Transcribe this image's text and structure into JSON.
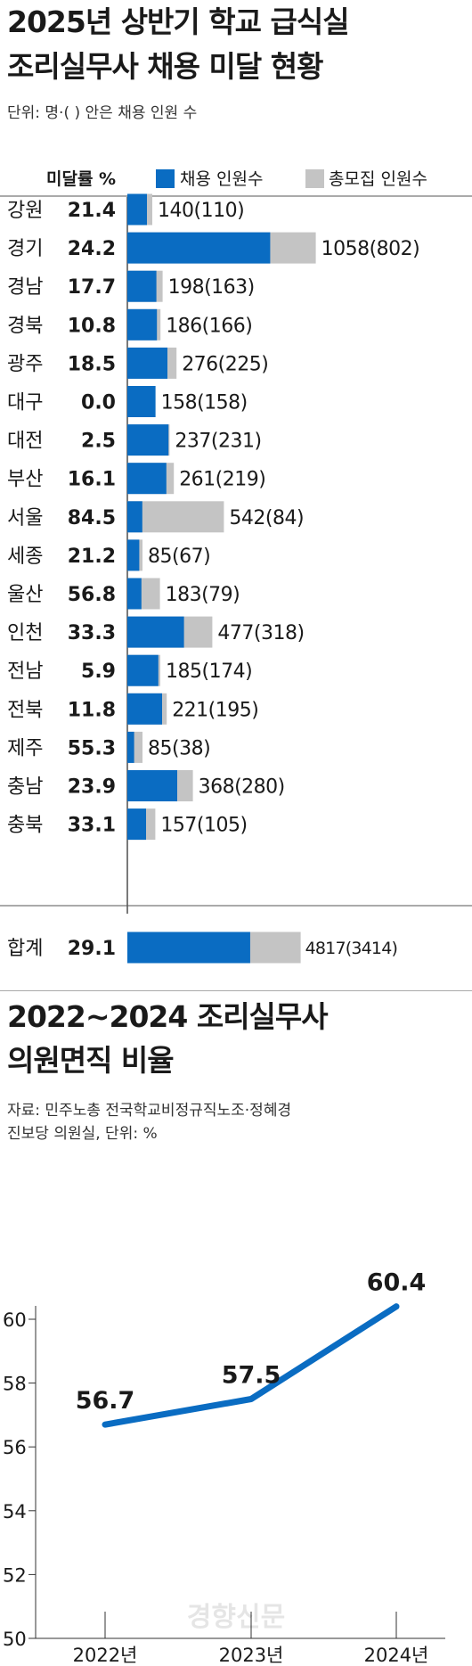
{
  "chart1": {
    "title_line1": "2025년 상반기 학교 급식실",
    "title_line2": "조리실무사 채용 미달 현황",
    "unit_note": "단위: 명·( ) 안은 채용 인원 수",
    "rate_header": "미달률 %",
    "legend_hired": "채용 인원수",
    "legend_total": "총모집 인원수"
  },
  "chart2": {
    "title_line1": "2022~2024 조리실무사",
    "title_line2": "의원면직 비율",
    "source_line1": "자료: 민주노총 전국학교비정규직노조·정혜경",
    "source_line2": "진보당 의원실, 단위: %"
  },
  "watermark": "경향신문",
  "colors": {
    "hired": "#0a6cc2",
    "total": "#c4c4c4",
    "line": "#0a6cc2"
  },
  "chart_data": [
    {
      "type": "bar",
      "orientation": "horizontal",
      "stacked": true,
      "title": "2025년 상반기 학교 급식실 조리실무사 채용 미달 현황",
      "unit": "명",
      "categories": [
        "강원",
        "경기",
        "경남",
        "경북",
        "광주",
        "대구",
        "대전",
        "부산",
        "서울",
        "세종",
        "울산",
        "인천",
        "전남",
        "전북",
        "제주",
        "충남",
        "충북"
      ],
      "rate": [
        21.4,
        24.2,
        17.7,
        10.8,
        18.5,
        0.0,
        2.5,
        16.1,
        84.5,
        21.2,
        56.8,
        33.3,
        5.9,
        11.8,
        55.3,
        23.9,
        33.1
      ],
      "rate_labels": [
        "21.4",
        "24.2",
        "17.7",
        "10.8",
        "18.5",
        "0.0",
        "2.5",
        "16.1",
        "84.5",
        "21.2",
        "56.8",
        "33.3",
        "5.9",
        "11.8",
        "55.3",
        "23.9",
        "33.1"
      ],
      "series": [
        {
          "name": "채용 인원수",
          "values": [
            110,
            802,
            163,
            166,
            225,
            158,
            231,
            219,
            84,
            67,
            79,
            318,
            174,
            195,
            38,
            280,
            105
          ]
        },
        {
          "name": "총모집 인원수",
          "values": [
            140,
            1058,
            198,
            186,
            276,
            158,
            237,
            261,
            542,
            85,
            183,
            477,
            185,
            221,
            85,
            368,
            157
          ]
        }
      ],
      "total": {
        "label": "합계",
        "rate": 29.1,
        "rate_label": "29.1",
        "hired": 3414,
        "recruited": 4817
      }
    },
    {
      "type": "line",
      "title": "2022~2024 조리실무사 의원면직 비율",
      "unit": "%",
      "x": [
        "2022년",
        "2023년",
        "2024년"
      ],
      "y": [
        56.7,
        57.5,
        60.4
      ],
      "y_labels": [
        "56.7",
        "57.5",
        "60.4"
      ],
      "ylim": [
        50,
        60
      ],
      "yticks": [
        50,
        52,
        54,
        56,
        58,
        60
      ]
    }
  ]
}
